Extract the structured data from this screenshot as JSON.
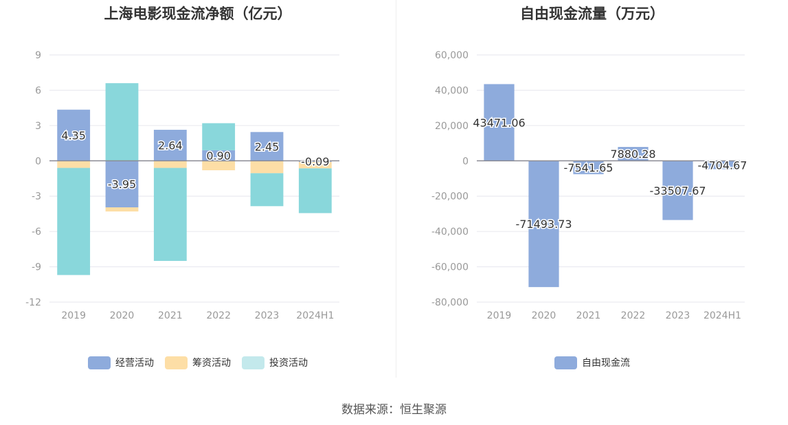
{
  "chart_data": [
    {
      "type": "bar",
      "stacked": true,
      "title": "上海电影现金流净额（亿元）",
      "categories": [
        "2019",
        "2020",
        "2021",
        "2022",
        "2023",
        "2024H1"
      ],
      "ylim": [
        -12,
        9
      ],
      "yticks": [
        "9",
        "6",
        "3",
        "0",
        "-3",
        "-6",
        "-9",
        "-12"
      ],
      "ytick_values": [
        9,
        6,
        3,
        0,
        -3,
        -6,
        -9,
        -12
      ],
      "legend_position": "bottom",
      "series": [
        {
          "name": "经营活动",
          "color": "#8eabdc",
          "values": [
            4.35,
            -3.95,
            2.64,
            0.9,
            2.45,
            -0.09
          ],
          "labels": [
            "4.35",
            "-3.95",
            "2.64",
            "0.90",
            "2.45",
            "-0.09"
          ]
        },
        {
          "name": "筹资活动",
          "color": "#fddea6",
          "values": [
            -0.6,
            -0.35,
            -0.6,
            -0.8,
            -1.05,
            -0.55
          ]
        },
        {
          "name": "投资活动",
          "color": "#89d7db",
          "values": [
            -9.1,
            6.6,
            -7.9,
            2.3,
            -2.8,
            -3.8
          ]
        }
      ]
    },
    {
      "type": "bar",
      "title": "自由现金流量（万元）",
      "categories": [
        "2019",
        "2020",
        "2021",
        "2022",
        "2023",
        "2024H1"
      ],
      "ylim": [
        -80000,
        60000
      ],
      "yticks": [
        "60,000",
        "40,000",
        "20,000",
        "0",
        "-20,000",
        "-40,000",
        "-60,000",
        "-80,000"
      ],
      "ytick_values": [
        60000,
        40000,
        20000,
        0,
        -20000,
        -40000,
        -60000,
        -80000
      ],
      "legend_position": "bottom",
      "series": [
        {
          "name": "自由现金流",
          "color": "#8eabdc",
          "values": [
            43471.06,
            -71493.73,
            -7541.65,
            7880.28,
            -33507.67,
            -4704.67
          ],
          "labels": [
            "43471.06",
            "-71493.73",
            "-7541.65",
            "7880.28",
            "-33507.67",
            "-4704.67"
          ]
        }
      ]
    }
  ],
  "legend_left": [
    {
      "label": "经营活动",
      "color": "#8eabdc"
    },
    {
      "label": "筹资活动",
      "color": "#fddea6"
    },
    {
      "label": "投资活动",
      "color": "#c3e9ec"
    }
  ],
  "legend_right": [
    {
      "label": "自由现金流",
      "color": "#8eabdc"
    }
  ],
  "footer": {
    "source": "数据来源：恒生聚源"
  }
}
